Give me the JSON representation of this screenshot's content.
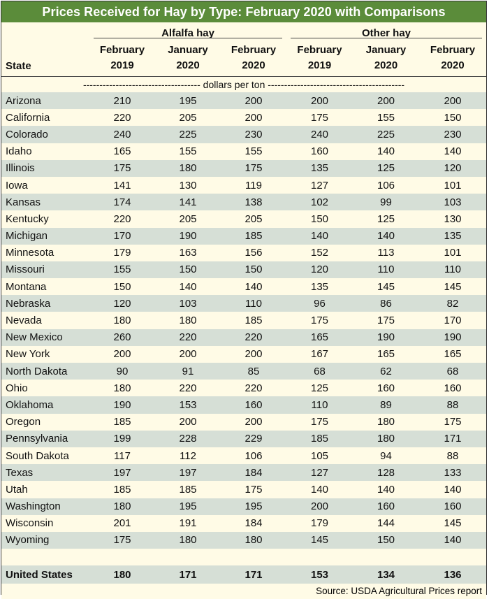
{
  "title": "Prices Received for Hay by Type: February 2020 with Comparisons",
  "groups": {
    "alfalfa": "Alfalfa hay",
    "other": "Other hay"
  },
  "state_header": "State",
  "columns": [
    {
      "month": "February",
      "year": "2019"
    },
    {
      "month": "January",
      "year": "2020"
    },
    {
      "month": "February",
      "year": "2020"
    },
    {
      "month": "February",
      "year": "2019"
    },
    {
      "month": "January",
      "year": "2020"
    },
    {
      "month": "February",
      "year": "2020"
    }
  ],
  "units": "------------------------------------ dollars per ton ------------------------------------------",
  "rows": [
    {
      "state": "Arizona",
      "v": [
        "210",
        "195",
        "200",
        "200",
        "200",
        "200"
      ]
    },
    {
      "state": "California",
      "v": [
        "220",
        "205",
        "200",
        "175",
        "155",
        "150"
      ]
    },
    {
      "state": "Colorado",
      "v": [
        "240",
        "225",
        "230",
        "240",
        "225",
        "230"
      ]
    },
    {
      "state": "Idaho",
      "v": [
        "165",
        "155",
        "155",
        "160",
        "140",
        "140"
      ]
    },
    {
      "state": "Illinois",
      "v": [
        "175",
        "180",
        "175",
        "135",
        "125",
        "120"
      ]
    },
    {
      "state": "Iowa",
      "v": [
        "141",
        "130",
        "119",
        "127",
        "106",
        "101"
      ]
    },
    {
      "state": "Kansas",
      "v": [
        "174",
        "141",
        "138",
        "102",
        "99",
        "103"
      ]
    },
    {
      "state": "Kentucky",
      "v": [
        "220",
        "205",
        "205",
        "150",
        "125",
        "130"
      ]
    },
    {
      "state": "Michigan",
      "v": [
        "170",
        "190",
        "185",
        "140",
        "140",
        "135"
      ]
    },
    {
      "state": "Minnesota",
      "v": [
        "179",
        "163",
        "156",
        "152",
        "113",
        "101"
      ]
    },
    {
      "state": "Missouri",
      "v": [
        "155",
        "150",
        "150",
        "120",
        "110",
        "110"
      ]
    },
    {
      "state": "Montana",
      "v": [
        "150",
        "140",
        "140",
        "135",
        "145",
        "145"
      ]
    },
    {
      "state": "Nebraska",
      "v": [
        "120",
        "103",
        "110",
        "96",
        "86",
        "82"
      ]
    },
    {
      "state": "Nevada",
      "v": [
        "180",
        "180",
        "185",
        "175",
        "175",
        "170"
      ]
    },
    {
      "state": "New Mexico",
      "v": [
        "260",
        "220",
        "220",
        "165",
        "190",
        "190"
      ]
    },
    {
      "state": "New York",
      "v": [
        "200",
        "200",
        "200",
        "167",
        "165",
        "165"
      ]
    },
    {
      "state": "North Dakota",
      "v": [
        "90",
        "91",
        "85",
        "68",
        "62",
        "68"
      ]
    },
    {
      "state": "Ohio",
      "v": [
        "180",
        "220",
        "220",
        "125",
        "160",
        "160"
      ]
    },
    {
      "state": "Oklahoma",
      "v": [
        "190",
        "153",
        "160",
        "110",
        "89",
        "88"
      ]
    },
    {
      "state": "Oregon",
      "v": [
        "185",
        "200",
        "200",
        "175",
        "180",
        "175"
      ]
    },
    {
      "state": "Pennsylvania",
      "v": [
        "199",
        "228",
        "229",
        "185",
        "180",
        "171"
      ]
    },
    {
      "state": "South Dakota",
      "v": [
        "117",
        "112",
        "106",
        "105",
        "94",
        "88"
      ]
    },
    {
      "state": "Texas",
      "v": [
        "197",
        "197",
        "184",
        "127",
        "128",
        "133"
      ]
    },
    {
      "state": "Utah",
      "v": [
        "185",
        "185",
        "175",
        "140",
        "140",
        "140"
      ]
    },
    {
      "state": "Washington",
      "v": [
        "180",
        "195",
        "195",
        "200",
        "160",
        "160"
      ]
    },
    {
      "state": "Wisconsin",
      "v": [
        "201",
        "191",
        "184",
        "179",
        "144",
        "145"
      ]
    },
    {
      "state": "Wyoming",
      "v": [
        "175",
        "180",
        "180",
        "145",
        "150",
        "140"
      ]
    }
  ],
  "total": {
    "state": "United States",
    "v": [
      "180",
      "171",
      "171",
      "153",
      "134",
      "136"
    ]
  },
  "source": "Source: USDA Agricultural Prices report",
  "colors": {
    "title_bg": "#5b8c3a",
    "shade": "#d6dfd6",
    "paper": "#fffbe6"
  }
}
